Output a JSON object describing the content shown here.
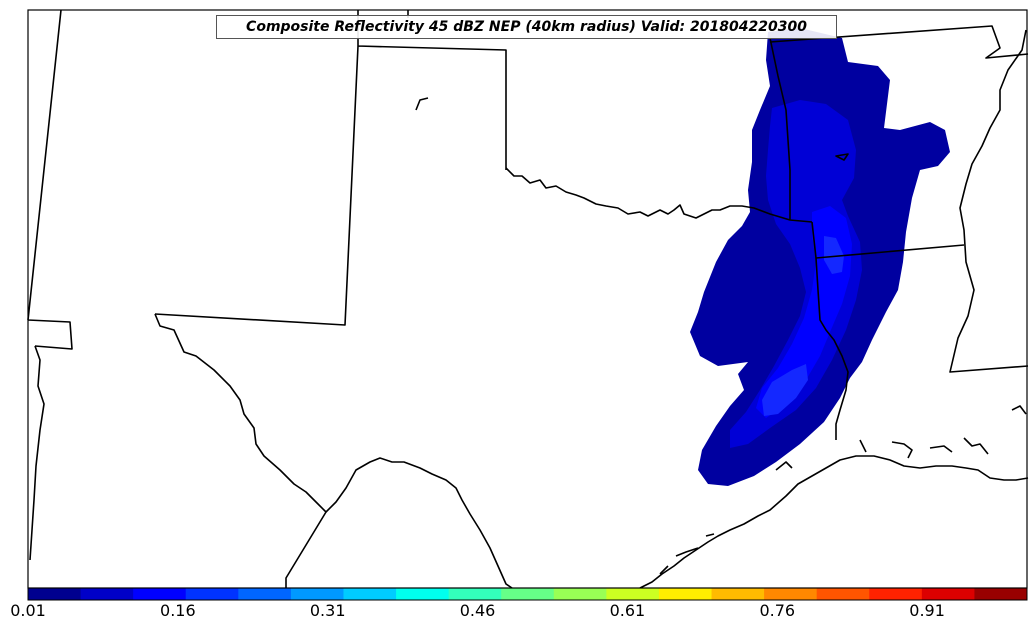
{
  "title": "Composite Reflectivity 45 dBZ NEP (40km radius) Valid: 201804220300",
  "colorbar": {
    "colors": [
      "#00008f",
      "#0000c8",
      "#0000ff",
      "#0033ff",
      "#0066ff",
      "#0099ff",
      "#00ccff",
      "#00ffee",
      "#33ffbb",
      "#66ff88",
      "#99ff55",
      "#ccff22",
      "#ffee00",
      "#ffbb00",
      "#ff8800",
      "#ff5500",
      "#ff2200",
      "#dd0000",
      "#990000"
    ],
    "ticks": [
      "0.01",
      "0.16",
      "0.31",
      "0.46",
      "0.61",
      "0.76",
      "0.91"
    ]
  },
  "probability_field": {
    "outer_color": "#0000a0",
    "mid_color": "#0000d6",
    "inner_color": "#0000ff",
    "core_color": "#1428ff"
  }
}
